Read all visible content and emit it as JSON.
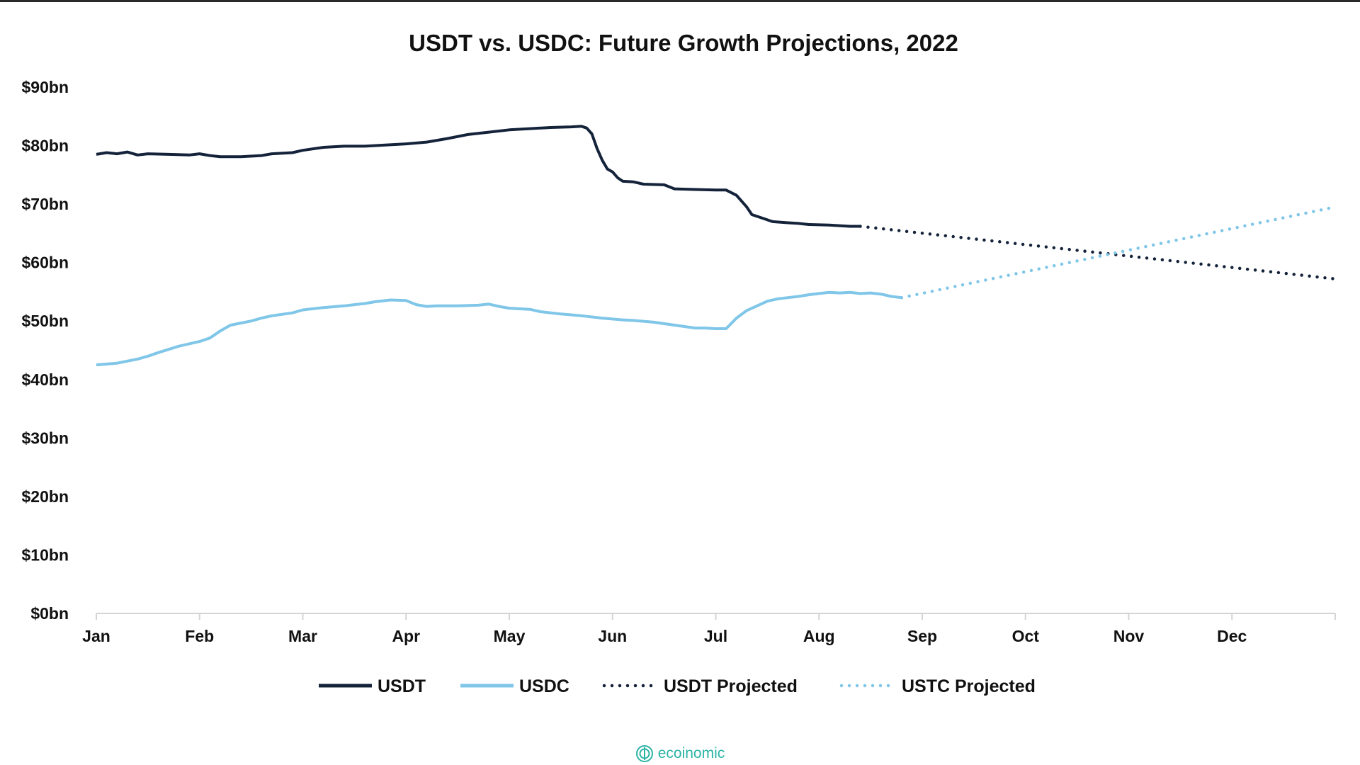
{
  "chart_data": {
    "type": "line",
    "title": "USDT vs. USDC: Future Growth Projections, 2022",
    "xlabel": "",
    "ylabel": "",
    "x_tick_labels": [
      "Jan",
      "Feb",
      "Mar",
      "Apr",
      "May",
      "Jun",
      "Jul",
      "Aug",
      "Sep",
      "Oct",
      "Nov",
      "Dec"
    ],
    "y_tick_labels": [
      "$0bn",
      "$10bn",
      "$20bn",
      "$30bn",
      "$40bn",
      "$50bn",
      "$60bn",
      "$70bn",
      "$80bn",
      "$90bn"
    ],
    "ylim": [
      0,
      90
    ],
    "x_unit": "month of 2022 (0 = start of Jan, 12 = end of Dec)",
    "xlim": [
      0,
      12
    ],
    "grid": false,
    "legend_position": "bottom-center",
    "series": [
      {
        "name": "USDT",
        "style": "solid",
        "color": "#14233a",
        "points": [
          [
            0.0,
            78.5
          ],
          [
            0.1,
            78.8
          ],
          [
            0.2,
            78.6
          ],
          [
            0.3,
            78.9
          ],
          [
            0.4,
            78.4
          ],
          [
            0.5,
            78.6
          ],
          [
            0.7,
            78.5
          ],
          [
            0.9,
            78.4
          ],
          [
            1.0,
            78.6
          ],
          [
            1.1,
            78.3
          ],
          [
            1.2,
            78.1
          ],
          [
            1.4,
            78.1
          ],
          [
            1.6,
            78.3
          ],
          [
            1.7,
            78.6
          ],
          [
            1.9,
            78.8
          ],
          [
            2.0,
            79.2
          ],
          [
            2.2,
            79.7
          ],
          [
            2.4,
            79.9
          ],
          [
            2.6,
            79.9
          ],
          [
            2.8,
            80.1
          ],
          [
            3.0,
            80.3
          ],
          [
            3.2,
            80.6
          ],
          [
            3.4,
            81.2
          ],
          [
            3.6,
            81.9
          ],
          [
            3.8,
            82.3
          ],
          [
            4.0,
            82.7
          ],
          [
            4.2,
            82.9
          ],
          [
            4.4,
            83.1
          ],
          [
            4.6,
            83.2
          ],
          [
            4.7,
            83.3
          ],
          [
            4.75,
            83.0
          ],
          [
            4.8,
            82.0
          ],
          [
            4.85,
            79.5
          ],
          [
            4.9,
            77.5
          ],
          [
            4.95,
            76.0
          ],
          [
            5.0,
            75.5
          ],
          [
            5.05,
            74.5
          ],
          [
            5.1,
            73.9
          ],
          [
            5.2,
            73.8
          ],
          [
            5.3,
            73.4
          ],
          [
            5.5,
            73.3
          ],
          [
            5.6,
            72.6
          ],
          [
            5.8,
            72.5
          ],
          [
            6.0,
            72.4
          ],
          [
            6.1,
            72.4
          ],
          [
            6.2,
            71.5
          ],
          [
            6.3,
            69.5
          ],
          [
            6.35,
            68.2
          ],
          [
            6.45,
            67.6
          ],
          [
            6.55,
            67.0
          ],
          [
            6.7,
            66.8
          ],
          [
            6.8,
            66.7
          ],
          [
            6.9,
            66.5
          ],
          [
            7.1,
            66.4
          ],
          [
            7.3,
            66.2
          ],
          [
            7.4,
            66.2
          ]
        ]
      },
      {
        "name": "USDC",
        "style": "solid",
        "color": "#7fc6e8",
        "points": [
          [
            0.0,
            42.5
          ],
          [
            0.2,
            42.8
          ],
          [
            0.4,
            43.5
          ],
          [
            0.5,
            44.0
          ],
          [
            0.6,
            44.6
          ],
          [
            0.8,
            45.7
          ],
          [
            1.0,
            46.5
          ],
          [
            1.1,
            47.1
          ],
          [
            1.2,
            48.3
          ],
          [
            1.3,
            49.3
          ],
          [
            1.5,
            50.0
          ],
          [
            1.6,
            50.5
          ],
          [
            1.7,
            50.9
          ],
          [
            1.9,
            51.4
          ],
          [
            2.0,
            51.9
          ],
          [
            2.2,
            52.3
          ],
          [
            2.4,
            52.6
          ],
          [
            2.5,
            52.8
          ],
          [
            2.6,
            53.0
          ],
          [
            2.7,
            53.3
          ],
          [
            2.85,
            53.6
          ],
          [
            3.0,
            53.5
          ],
          [
            3.1,
            52.8
          ],
          [
            3.2,
            52.5
          ],
          [
            3.3,
            52.6
          ],
          [
            3.5,
            52.6
          ],
          [
            3.7,
            52.7
          ],
          [
            3.8,
            52.9
          ],
          [
            3.9,
            52.5
          ],
          [
            4.0,
            52.2
          ],
          [
            4.2,
            52.0
          ],
          [
            4.3,
            51.6
          ],
          [
            4.5,
            51.2
          ],
          [
            4.7,
            50.9
          ],
          [
            4.9,
            50.5
          ],
          [
            5.1,
            50.2
          ],
          [
            5.2,
            50.1
          ],
          [
            5.4,
            49.8
          ],
          [
            5.6,
            49.3
          ],
          [
            5.8,
            48.8
          ],
          [
            5.9,
            48.8
          ],
          [
            6.0,
            48.7
          ],
          [
            6.1,
            48.7
          ],
          [
            6.2,
            50.5
          ],
          [
            6.3,
            51.8
          ],
          [
            6.4,
            52.6
          ],
          [
            6.5,
            53.4
          ],
          [
            6.6,
            53.8
          ],
          [
            6.7,
            54.0
          ],
          [
            6.8,
            54.2
          ],
          [
            6.9,
            54.5
          ],
          [
            7.0,
            54.7
          ],
          [
            7.1,
            54.9
          ],
          [
            7.2,
            54.8
          ],
          [
            7.3,
            54.9
          ],
          [
            7.4,
            54.7
          ],
          [
            7.5,
            54.8
          ],
          [
            7.6,
            54.6
          ],
          [
            7.7,
            54.2
          ],
          [
            7.8,
            54.0
          ]
        ]
      },
      {
        "name": "USDT Projected",
        "style": "dotted",
        "color": "#14233a",
        "points": [
          [
            7.4,
            66.2
          ],
          [
            12.0,
            57.2
          ]
        ]
      },
      {
        "name": "USTC Projected",
        "style": "dotted",
        "color": "#7fc6e8",
        "points": [
          [
            7.8,
            54.0
          ],
          [
            12.0,
            69.5
          ]
        ]
      }
    ]
  },
  "watermark": {
    "text": "ecoinomic",
    "color": "#2bb3a6",
    "icon": "ecoinomic-logo-icon"
  }
}
